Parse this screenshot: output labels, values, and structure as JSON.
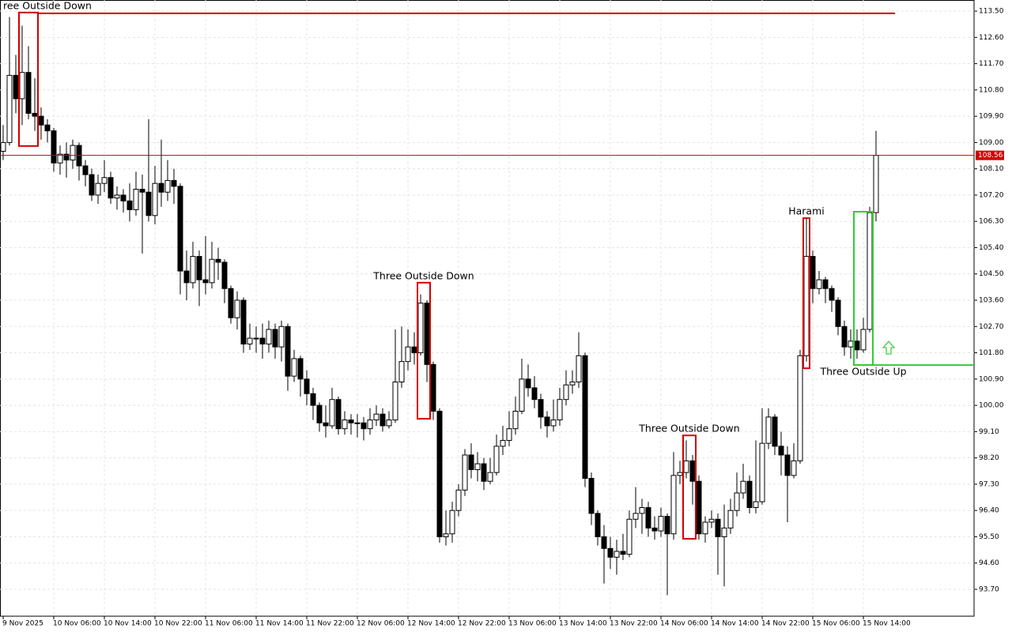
{
  "chart_data": {
    "type": "candlestick",
    "categories": [
      "9 Nov 2025",
      null,
      null,
      null,
      null,
      null,
      null,
      null,
      "10 Nov 06:00",
      null,
      null,
      null,
      null,
      null,
      null,
      null,
      "10 Nov 14:00",
      null,
      null,
      null,
      null,
      null,
      null,
      null,
      "10 Nov 22:00",
      null,
      null,
      null,
      null,
      null,
      null,
      null,
      "11 Nov 06:00",
      null,
      null,
      null,
      null,
      null,
      null,
      null,
      "11 Nov 14:00",
      null,
      null,
      null,
      null,
      null,
      null,
      null,
      "11 Nov 22:00",
      null,
      null,
      null,
      null,
      null,
      null,
      null,
      "12 Nov 06:00",
      null,
      null,
      null,
      null,
      null,
      null,
      null,
      "12 Nov 14:00",
      null,
      null,
      null,
      null,
      null,
      null,
      null,
      "12 Nov 22:00",
      null,
      null,
      null,
      null,
      null,
      null,
      null,
      "13 Nov 06:00",
      null,
      null,
      null,
      null,
      null,
      null,
      null,
      "13 Nov 14:00",
      null,
      null,
      null,
      null,
      null,
      null,
      null,
      "13 Nov 22:00",
      null,
      null,
      null,
      null,
      null,
      null,
      null,
      "14 Nov 06:00",
      null,
      null,
      null,
      null,
      null,
      null,
      null,
      "14 Nov 14:00",
      null,
      null,
      null,
      null,
      null,
      null,
      null,
      "14 Nov 22:00",
      null,
      null,
      null,
      null,
      null,
      null,
      null,
      "15 Nov 06:00",
      null,
      null,
      null,
      null,
      null,
      null,
      null,
      "15 Nov 14:00",
      null,
      null
    ],
    "open": [
      108.7,
      109.0,
      111.3,
      110.5,
      111.4,
      110.0,
      109.9,
      109.6,
      109.4,
      108.3,
      108.6,
      108.4,
      108.9,
      108.2,
      107.9,
      107.2,
      107.6,
      107.8,
      107.1,
      107.2,
      107.0,
      106.7,
      107.4,
      107.3,
      106.5,
      107.6,
      107.3,
      107.7,
      107.5,
      104.6,
      104.2,
      105.1,
      104.3,
      104.2,
      105.0,
      104.9,
      104.0,
      103.0,
      103.6,
      102.1,
      102.3,
      102.3,
      102.1,
      102.6,
      102.0,
      102.7,
      101.0,
      101.6,
      100.9,
      100.4,
      100.0,
      99.4,
      99.3,
      100.2,
      99.2,
      99.5,
      99.4,
      99.4,
      99.2,
      99.5,
      99.7,
      99.3,
      99.5,
      100.8,
      101.5,
      102.0,
      101.8,
      103.5,
      101.4,
      99.8,
      95.5,
      95.6,
      96.4,
      97.1,
      98.3,
      97.8,
      98.0,
      97.4,
      97.7,
      98.6,
      98.8,
      99.2,
      99.8,
      100.9,
      100.6,
      100.2,
      99.6,
      99.3,
      99.5,
      100.2,
      100.7,
      100.8,
      101.7,
      97.5,
      96.3,
      95.5,
      95.1,
      94.8,
      95.0,
      94.9,
      96.1,
      96.3,
      96.5,
      95.8,
      95.7,
      96.2,
      95.6,
      97.6,
      97.7,
      98.1,
      97.4,
      95.6,
      96.0,
      96.1,
      95.5,
      95.8,
      96.4,
      97.0,
      97.4,
      96.5,
      96.7,
      98.7,
      99.6,
      98.6,
      98.3,
      97.6,
      98.1,
      101.7,
      105.1,
      104.0,
      104.3,
      104.0,
      103.6,
      102.7,
      102.0,
      102.2,
      101.9,
      102.6,
      106.6
    ],
    "high": [
      109.6,
      113.3,
      112.0,
      113.0,
      112.3,
      111.2,
      110.2,
      109.8,
      109.5,
      108.9,
      109.0,
      109.1,
      109.0,
      108.4,
      108.1,
      107.9,
      108.4,
      108.0,
      107.5,
      107.4,
      107.6,
      108.0,
      107.9,
      109.8,
      108.2,
      109.1,
      108.4,
      108.1,
      107.6,
      105.3,
      105.6,
      105.3,
      105.8,
      105.6,
      105.4,
      105.0,
      104.1,
      103.9,
      103.7,
      102.8,
      102.7,
      102.8,
      102.9,
      102.8,
      102.9,
      102.8,
      101.9,
      101.7,
      101.2,
      100.6,
      100.1,
      100.0,
      100.6,
      100.3,
      99.8,
      99.7,
      99.7,
      99.6,
      99.9,
      100.0,
      99.9,
      99.8,
      102.6,
      102.7,
      102.6,
      102.5,
      103.8,
      103.6,
      101.5,
      99.9,
      96.4,
      96.7,
      97.3,
      98.5,
      98.7,
      98.4,
      98.2,
      98.2,
      99.0,
      99.3,
      99.8,
      100.3,
      101.6,
      101.4,
      101.0,
      100.4,
      99.8,
      100.2,
      100.6,
      101.2,
      101.2,
      102.5,
      101.8,
      97.7,
      96.4,
      95.9,
      95.5,
      95.4,
      95.6,
      96.4,
      97.2,
      96.8,
      96.7,
      96.2,
      96.5,
      96.3,
      98.4,
      98.1,
      98.8,
      98.3,
      97.6,
      96.2,
      96.4,
      96.3,
      96.6,
      96.8,
      97.7,
      98.0,
      97.6,
      98.8,
      99.9,
      99.9,
      99.7,
      99.1,
      98.6,
      98.7,
      101.9,
      106.4,
      105.3,
      104.6,
      104.4,
      104.1,
      103.7,
      102.9,
      102.6,
      102.6,
      103.0,
      106.8,
      109.4
    ],
    "low": [
      108.4,
      108.9,
      110.0,
      109.6,
      109.8,
      109.4,
      109.1,
      109.0,
      108.0,
      107.9,
      107.8,
      108.1,
      107.7,
      107.5,
      107.0,
      106.9,
      107.3,
      106.9,
      106.7,
      106.6,
      106.3,
      106.5,
      105.2,
      106.3,
      106.2,
      106.8,
      107.0,
      106.9,
      103.8,
      103.6,
      104.0,
      103.4,
      103.8,
      104.0,
      104.3,
      103.5,
      102.8,
      102.6,
      101.8,
      101.9,
      101.8,
      101.6,
      101.8,
      101.6,
      101.5,
      100.5,
      100.8,
      100.3,
      100.0,
      99.5,
      99.1,
      98.9,
      99.2,
      99.0,
      99.0,
      99.0,
      98.9,
      98.8,
      99.0,
      99.3,
      99.1,
      99.2,
      99.4,
      100.6,
      101.2,
      101.4,
      101.7,
      100.8,
      99.5,
      95.3,
      95.2,
      95.3,
      96.2,
      96.9,
      97.5,
      97.4,
      97.1,
      97.3,
      97.6,
      98.3,
      98.6,
      99.0,
      99.7,
      100.3,
      99.9,
      99.2,
      98.9,
      99.1,
      99.3,
      100.0,
      100.4,
      100.6,
      97.2,
      95.9,
      95.2,
      93.9,
      94.4,
      94.2,
      94.7,
      94.8,
      95.8,
      95.6,
      95.5,
      95.4,
      95.5,
      93.5,
      95.4,
      97.3,
      97.5,
      96.6,
      95.4,
      95.3,
      95.8,
      94.2,
      93.8,
      95.6,
      96.2,
      96.8,
      96.3,
      96.3,
      96.6,
      98.5,
      98.3,
      97.6,
      96.0,
      97.5,
      98.0,
      101.5,
      103.5,
      103.8,
      103.5,
      103.2,
      102.4,
      101.7,
      101.6,
      101.6,
      101.8,
      102.5,
      106.3
    ],
    "close": [
      109.0,
      111.3,
      110.5,
      111.4,
      110.0,
      109.9,
      109.6,
      109.4,
      108.3,
      108.6,
      108.4,
      108.9,
      108.2,
      107.9,
      107.2,
      107.6,
      107.8,
      107.1,
      107.2,
      107.0,
      106.7,
      107.4,
      107.3,
      106.5,
      107.6,
      107.3,
      107.7,
      107.5,
      104.6,
      104.2,
      105.1,
      104.3,
      104.2,
      105.0,
      104.9,
      104.0,
      103.0,
      103.6,
      102.1,
      102.3,
      102.3,
      102.1,
      102.6,
      102.0,
      102.7,
      101.0,
      101.6,
      100.9,
      100.4,
      100.0,
      99.4,
      99.3,
      100.2,
      99.2,
      99.5,
      99.4,
      99.4,
      99.2,
      99.5,
      99.7,
      99.3,
      99.5,
      100.8,
      101.5,
      102.0,
      101.8,
      103.5,
      101.4,
      99.8,
      95.5,
      95.6,
      96.4,
      97.1,
      98.3,
      97.8,
      98.0,
      97.4,
      97.7,
      98.6,
      98.8,
      99.2,
      99.8,
      100.9,
      100.6,
      100.2,
      99.6,
      99.3,
      99.5,
      100.2,
      100.7,
      100.8,
      101.7,
      97.5,
      96.3,
      95.5,
      95.1,
      94.8,
      95.0,
      94.9,
      96.1,
      96.3,
      96.5,
      95.8,
      95.7,
      96.2,
      95.6,
      97.6,
      97.7,
      98.1,
      97.4,
      95.6,
      96.0,
      96.1,
      95.5,
      95.8,
      96.4,
      97.0,
      97.4,
      96.5,
      96.7,
      98.7,
      99.6,
      98.6,
      98.3,
      97.6,
      98.1,
      101.7,
      105.1,
      104.0,
      104.3,
      104.0,
      103.6,
      102.7,
      102.0,
      102.2,
      101.9,
      102.6,
      106.6,
      108.56
    ],
    "ylim": [
      92.78,
      113.88
    ],
    "yticks": [
      {
        "value": 113.5,
        "label": "113.50"
      },
      {
        "value": 112.6,
        "label": "112.60"
      },
      {
        "value": 111.7,
        "label": "111.70"
      },
      {
        "value": 110.8,
        "label": "110.80"
      },
      {
        "value": 109.9,
        "label": "109.90"
      },
      {
        "value": 109,
        "label": "109.00"
      },
      {
        "value": 108.1,
        "label": "108.10"
      },
      {
        "value": 107.2,
        "label": "107.20"
      },
      {
        "value": 106.3,
        "label": "106.30"
      },
      {
        "value": 105.4,
        "label": "105.40"
      },
      {
        "value": 104.5,
        "label": "104.50"
      },
      {
        "value": 103.6,
        "label": "103.60"
      },
      {
        "value": 102.7,
        "label": "102.70"
      },
      {
        "value": 101.8,
        "label": "101.80"
      },
      {
        "value": 100.9,
        "label": "100.90"
      },
      {
        "value": 100,
        "label": "100.00"
      },
      {
        "value": 99.1,
        "label": "99.10"
      },
      {
        "value": 98.2,
        "label": "98.20"
      },
      {
        "value": 97.3,
        "label": "97.30"
      },
      {
        "value": 96.4,
        "label": "96.40"
      },
      {
        "value": 95.5,
        "label": "95.50"
      },
      {
        "value": 94.6,
        "label": "94.60"
      },
      {
        "value": 93.7,
        "label": "93.70"
      }
    ],
    "grid": true,
    "price_line_color": "#d00000",
    "annotations": [
      {
        "label": "ree Outside Down",
        "color": "#d00000",
        "from": 3,
        "to": 5,
        "top": 113.45,
        "bottom": 108.88,
        "label_position": "above"
      },
      {
        "label": "Three Outside Down",
        "color": "#d00000",
        "from": 66,
        "to": 67,
        "top": 104.2,
        "bottom": 99.54,
        "label_position": "above"
      },
      {
        "label": "Three Outside Down",
        "color": "#d00000",
        "from": 108,
        "to": 109,
        "top": 98.97,
        "bottom": 95.43,
        "label_position": "above"
      },
      {
        "label": "Harami",
        "color": "#d00000",
        "from": 127,
        "to": 127,
        "top": 106.41,
        "bottom": 101.27,
        "label_position": "above"
      },
      {
        "label": "Three Outside Up",
        "color": "#33cc33",
        "from": 135,
        "to": 137,
        "top": 106.63,
        "bottom": 101.38,
        "label_position": "below"
      }
    ]
  }
}
